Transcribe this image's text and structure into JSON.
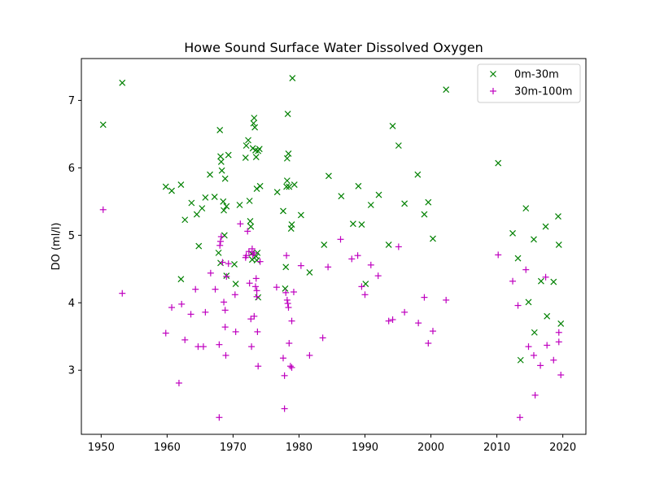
{
  "chart_data": {
    "type": "scatter",
    "title": "Howe Sound Surface Water Dissolved Oxygen",
    "xlabel": "",
    "ylabel": "DO (ml/l)",
    "xlim": [
      1947,
      2023.5
    ],
    "ylim": [
      2.05,
      7.62
    ],
    "xticks": [
      1950,
      1960,
      1970,
      1980,
      1990,
      2000,
      2010,
      2020
    ],
    "yticks": [
      3,
      4,
      5,
      6,
      7
    ],
    "grid": false,
    "legend_position": "top-right",
    "series": [
      {
        "name": "0m-30m",
        "marker": "x",
        "color": "#008000",
        "points": [
          [
            1950.3,
            6.64
          ],
          [
            1953.2,
            7.26
          ],
          [
            1959.8,
            5.72
          ],
          [
            1960.7,
            5.66
          ],
          [
            1962.1,
            5.75
          ],
          [
            1962.1,
            4.35
          ],
          [
            1962.7,
            5.23
          ],
          [
            1963.7,
            5.48
          ],
          [
            1964.5,
            5.31
          ],
          [
            1964.8,
            4.84
          ],
          [
            1965.3,
            5.4
          ],
          [
            1965.8,
            5.56
          ],
          [
            1966.5,
            5.9
          ],
          [
            1967.2,
            5.57
          ],
          [
            1967.8,
            4.74
          ],
          [
            1968.0,
            6.56
          ],
          [
            1968.1,
            6.17
          ],
          [
            1968.2,
            6.09
          ],
          [
            1968.1,
            4.59
          ],
          [
            1968.3,
            5.96
          ],
          [
            1968.5,
            5.5
          ],
          [
            1968.6,
            5.37
          ],
          [
            1968.8,
            5.84
          ],
          [
            1968.7,
            5.0
          ],
          [
            1969.0,
            5.43
          ],
          [
            1969.3,
            6.19
          ],
          [
            1969.0,
            4.4
          ],
          [
            1970.2,
            4.57
          ],
          [
            1970.4,
            4.28
          ],
          [
            1971.0,
            5.45
          ],
          [
            1971.9,
            6.15
          ],
          [
            1972.0,
            6.33
          ],
          [
            1972.3,
            6.41
          ],
          [
            1972.5,
            5.51
          ],
          [
            1972.6,
            5.21
          ],
          [
            1972.7,
            5.13
          ],
          [
            1972.8,
            4.73
          ],
          [
            1972.9,
            4.64
          ],
          [
            1973.0,
            6.29
          ],
          [
            1973.1,
            6.66
          ],
          [
            1973.2,
            6.74
          ],
          [
            1973.3,
            6.6
          ],
          [
            1973.4,
            6.26
          ],
          [
            1973.5,
            6.16
          ],
          [
            1973.6,
            5.69
          ],
          [
            1973.5,
            4.69
          ],
          [
            1973.7,
            4.74
          ],
          [
            1973.8,
            6.25
          ],
          [
            1973.6,
            4.63
          ],
          [
            1973.8,
            4.08
          ],
          [
            1974.0,
            6.28
          ],
          [
            1974.1,
            5.73
          ],
          [
            1976.7,
            5.64
          ],
          [
            1977.6,
            5.36
          ],
          [
            1977.9,
            4.21
          ],
          [
            1978.0,
            4.53
          ],
          [
            1978.1,
            5.72
          ],
          [
            1978.2,
            5.81
          ],
          [
            1978.3,
            6.8
          ],
          [
            1978.4,
            6.21
          ],
          [
            1978.2,
            6.14
          ],
          [
            1978.5,
            5.72
          ],
          [
            1978.8,
            5.1
          ],
          [
            1978.9,
            5.16
          ],
          [
            1979.0,
            7.33
          ],
          [
            1979.3,
            5.75
          ],
          [
            1980.3,
            5.3
          ],
          [
            1981.6,
            4.45
          ],
          [
            1983.8,
            4.86
          ],
          [
            1984.5,
            5.88
          ],
          [
            1986.4,
            5.58
          ],
          [
            1988.2,
            5.17
          ],
          [
            1989.0,
            5.73
          ],
          [
            1989.5,
            5.16
          ],
          [
            1990.1,
            4.28
          ],
          [
            1990.9,
            5.45
          ],
          [
            1992.1,
            5.6
          ],
          [
            1993.6,
            4.86
          ],
          [
            1994.2,
            6.62
          ],
          [
            1995.1,
            6.33
          ],
          [
            1996.0,
            5.47
          ],
          [
            1998.0,
            5.9
          ],
          [
            1999.0,
            5.31
          ],
          [
            1999.6,
            5.49
          ],
          [
            2000.3,
            4.95
          ],
          [
            2002.3,
            7.16
          ],
          [
            2010.2,
            6.07
          ],
          [
            2012.4,
            5.03
          ],
          [
            2013.2,
            4.66
          ],
          [
            2013.6,
            3.15
          ],
          [
            2014.4,
            5.4
          ],
          [
            2014.8,
            4.01
          ],
          [
            2015.6,
            4.94
          ],
          [
            2015.7,
            3.56
          ],
          [
            2016.7,
            4.32
          ],
          [
            2017.4,
            5.13
          ],
          [
            2017.6,
            3.8
          ],
          [
            2018.6,
            4.31
          ],
          [
            2019.3,
            5.28
          ],
          [
            2019.4,
            4.86
          ],
          [
            2019.7,
            3.69
          ]
        ]
      },
      {
        "name": "30m-100m",
        "marker": "+",
        "color": "#bf00bf",
        "points": [
          [
            1950.3,
            5.38
          ],
          [
            1953.2,
            4.14
          ],
          [
            1959.8,
            3.55
          ],
          [
            1960.7,
            3.93
          ],
          [
            1961.8,
            2.81
          ],
          [
            1962.2,
            3.98
          ],
          [
            1962.7,
            3.45
          ],
          [
            1963.6,
            3.83
          ],
          [
            1964.3,
            4.2
          ],
          [
            1964.7,
            3.35
          ],
          [
            1965.5,
            3.35
          ],
          [
            1965.8,
            3.86
          ],
          [
            1966.6,
            4.44
          ],
          [
            1967.3,
            4.2
          ],
          [
            1967.9,
            2.3
          ],
          [
            1967.9,
            3.38
          ],
          [
            1968.0,
            4.85
          ],
          [
            1968.1,
            4.91
          ],
          [
            1968.2,
            4.98
          ],
          [
            1968.4,
            4.6
          ],
          [
            1968.6,
            4.01
          ],
          [
            1968.8,
            3.89
          ],
          [
            1968.8,
            3.64
          ],
          [
            1968.9,
            3.22
          ],
          [
            1969.0,
            4.39
          ],
          [
            1969.3,
            4.58
          ],
          [
            1970.3,
            4.12
          ],
          [
            1970.4,
            3.57
          ],
          [
            1971.1,
            5.17
          ],
          [
            1971.9,
            4.67
          ],
          [
            1972.0,
            4.7
          ],
          [
            1972.2,
            5.06
          ],
          [
            1972.4,
            4.76
          ],
          [
            1972.5,
            4.29
          ],
          [
            1972.7,
            3.76
          ],
          [
            1972.8,
            3.35
          ],
          [
            1972.9,
            4.8
          ],
          [
            1973.0,
            4.71
          ],
          [
            1973.2,
            4.74
          ],
          [
            1973.2,
            3.8
          ],
          [
            1973.4,
            4.24
          ],
          [
            1973.5,
            4.36
          ],
          [
            1973.6,
            4.18
          ],
          [
            1973.6,
            4.09
          ],
          [
            1973.7,
            3.57
          ],
          [
            1973.8,
            3.06
          ],
          [
            1974.1,
            4.61
          ],
          [
            1976.6,
            4.23
          ],
          [
            1977.6,
            3.18
          ],
          [
            1977.8,
            2.43
          ],
          [
            1977.8,
            2.92
          ],
          [
            1978.0,
            4.15
          ],
          [
            1978.1,
            4.7
          ],
          [
            1978.2,
            4.04
          ],
          [
            1978.3,
            3.99
          ],
          [
            1978.4,
            3.93
          ],
          [
            1978.5,
            3.4
          ],
          [
            1978.7,
            3.06
          ],
          [
            1978.9,
            3.04
          ],
          [
            1978.9,
            3.73
          ],
          [
            1979.2,
            4.16
          ],
          [
            1980.3,
            4.55
          ],
          [
            1981.6,
            3.22
          ],
          [
            1983.6,
            3.48
          ],
          [
            1984.4,
            4.53
          ],
          [
            1986.3,
            4.94
          ],
          [
            1988.0,
            4.65
          ],
          [
            1988.9,
            4.7
          ],
          [
            1989.5,
            4.24
          ],
          [
            1990.0,
            4.12
          ],
          [
            1990.9,
            4.56
          ],
          [
            1992.0,
            4.4
          ],
          [
            1993.6,
            3.73
          ],
          [
            1994.2,
            3.75
          ],
          [
            1995.1,
            4.83
          ],
          [
            1996.0,
            3.86
          ],
          [
            1998.1,
            3.7
          ],
          [
            1999.0,
            4.08
          ],
          [
            1999.6,
            3.4
          ],
          [
            2000.3,
            3.58
          ],
          [
            2002.3,
            4.04
          ],
          [
            2010.2,
            4.71
          ],
          [
            2012.4,
            4.32
          ],
          [
            2013.2,
            3.96
          ],
          [
            2013.5,
            2.3
          ],
          [
            2014.4,
            4.49
          ],
          [
            2014.8,
            3.35
          ],
          [
            2015.6,
            3.22
          ],
          [
            2015.8,
            2.63
          ],
          [
            2016.6,
            3.07
          ],
          [
            2017.4,
            4.38
          ],
          [
            2017.6,
            3.37
          ],
          [
            2018.6,
            3.15
          ],
          [
            2019.4,
            3.56
          ],
          [
            2019.4,
            3.42
          ],
          [
            2019.7,
            2.93
          ]
        ]
      }
    ]
  }
}
